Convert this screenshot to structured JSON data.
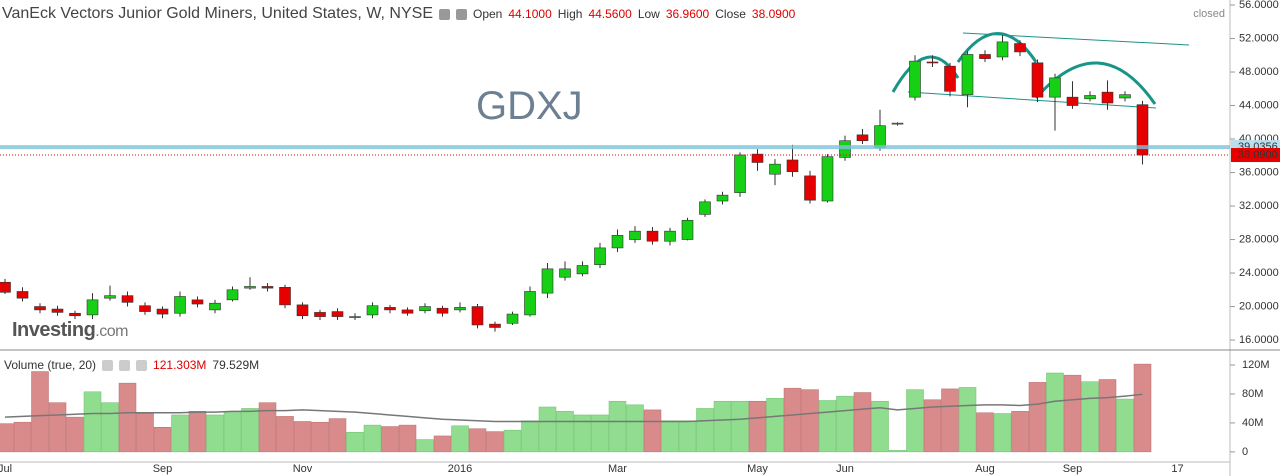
{
  "header": {
    "title": "VanEck Vectors Junior Gold Miners, United States, W, NYSE",
    "fields": [
      {
        "label": "Open",
        "value": "44.1000"
      },
      {
        "label": "High",
        "value": "44.5600"
      },
      {
        "label": "Low",
        "value": "36.9600"
      },
      {
        "label": "Close",
        "value": "38.0900"
      }
    ],
    "status": "closed"
  },
  "watermark": "GDXJ",
  "logo": {
    "main": "Investing",
    "suffix": ".com"
  },
  "chart_data": [
    {
      "type": "candlestick",
      "categories": [
        "Jul",
        null,
        null,
        null,
        null,
        null,
        null,
        null,
        null,
        "Sep",
        null,
        null,
        null,
        null,
        null,
        null,
        null,
        "Nov",
        null,
        null,
        null,
        null,
        null,
        null,
        null,
        null,
        "2016",
        null,
        null,
        null,
        null,
        null,
        null,
        null,
        null,
        "Mar",
        null,
        null,
        null,
        null,
        null,
        null,
        null,
        "May",
        null,
        null,
        null,
        null,
        "Jun",
        null,
        null,
        null,
        null,
        null,
        null,
        null,
        "Aug",
        null,
        null,
        null,
        null,
        "Sep",
        null,
        null,
        null,
        null,
        null,
        "17"
      ],
      "open": [
        22.9,
        21.8,
        20.0,
        19.7,
        19.2,
        19.0,
        21.0,
        21.3,
        20.1,
        19.7,
        19.2,
        20.8,
        19.6,
        20.8,
        22.2,
        22.4,
        22.3,
        20.2,
        19.3,
        19.4,
        18.7,
        19.0,
        19.9,
        19.6,
        19.5,
        19.8,
        19.6,
        20.0,
        17.9,
        18.0,
        19.0,
        21.6,
        23.5,
        23.9,
        25.0,
        27.0,
        28.0,
        29.0,
        27.8,
        28.0,
        31.0,
        32.6,
        33.6,
        38.2,
        35.8,
        37.5,
        35.6,
        32.6,
        37.8,
        40.5,
        39.0,
        41.8,
        45.0,
        49.2,
        48.7,
        45.3,
        50.1,
        49.8,
        51.4,
        49.1,
        45.0,
        45.0,
        44.8,
        45.6,
        44.9,
        44.1,
        null,
        null
      ],
      "high": [
        23.3,
        22.3,
        20.4,
        20.1,
        19.5,
        21.6,
        22.5,
        21.8,
        20.5,
        20.0,
        21.8,
        21.2,
        20.8,
        22.4,
        23.5,
        22.8,
        22.6,
        20.5,
        19.6,
        19.8,
        19.2,
        20.5,
        20.2,
        19.9,
        20.4,
        20.1,
        20.5,
        20.3,
        18.2,
        19.4,
        22.4,
        25.2,
        25.4,
        25.4,
        27.6,
        29.2,
        29.6,
        29.5,
        29.4,
        30.6,
        32.8,
        33.7,
        38.4,
        38.8,
        37.6,
        39.3,
        36.2,
        38.2,
        40.4,
        41.2,
        43.5,
        42.0,
        50.0,
        50.0,
        49.1,
        50.5,
        50.6,
        52.4,
        51.8,
        49.5,
        47.8,
        46.9,
        45.7,
        47.0,
        45.7,
        44.56,
        null,
        null
      ],
      "low": [
        21.5,
        20.6,
        19.2,
        18.9,
        18.5,
        18.5,
        20.7,
        20.0,
        19.0,
        18.6,
        18.8,
        19.9,
        19.2,
        20.6,
        22.0,
        21.8,
        19.8,
        18.5,
        18.4,
        18.4,
        18.4,
        18.6,
        19.2,
        18.9,
        19.2,
        18.8,
        19.3,
        17.4,
        17.0,
        17.8,
        18.8,
        21.0,
        23.1,
        23.6,
        24.6,
        26.5,
        27.6,
        27.4,
        27.3,
        27.9,
        30.7,
        32.2,
        33.1,
        36.2,
        34.5,
        35.5,
        32.3,
        32.4,
        37.4,
        39.4,
        38.6,
        41.6,
        44.6,
        48.6,
        45.1,
        43.8,
        49.2,
        49.4,
        49.9,
        44.4,
        41.0,
        43.6,
        44.5,
        43.5,
        44.5,
        36.96,
        null,
        null
      ],
      "close": [
        21.7,
        21.0,
        19.6,
        19.3,
        18.9,
        20.8,
        21.3,
        20.5,
        19.4,
        19.1,
        21.2,
        20.3,
        20.4,
        22.0,
        22.4,
        22.2,
        20.2,
        18.9,
        18.8,
        18.8,
        18.8,
        20.1,
        19.6,
        19.2,
        20.0,
        19.2,
        19.9,
        17.8,
        17.5,
        19.1,
        21.8,
        24.5,
        24.5,
        24.9,
        27.0,
        28.5,
        29.0,
        27.8,
        29.0,
        30.3,
        32.5,
        33.3,
        38.1,
        37.2,
        37.0,
        36.1,
        32.7,
        37.9,
        39.8,
        39.8,
        41.6,
        41.9,
        49.3,
        49.1,
        45.7,
        50.1,
        49.6,
        51.6,
        50.4,
        45.0,
        47.3,
        44.0,
        45.2,
        44.3,
        45.3,
        38.09,
        null,
        null
      ],
      "up_color": "#16d016",
      "down_color": "#e60000",
      "ylim": [
        15.05,
        56.6
      ],
      "yticks": [
        {
          "value": 16,
          "label": "16.0000"
        },
        {
          "value": 20,
          "label": "20.0000"
        },
        {
          "value": 24,
          "label": "24.0000"
        },
        {
          "value": 28,
          "label": "28.0000"
        },
        {
          "value": 32,
          "label": "32.0000"
        },
        {
          "value": 36,
          "label": "36.0000"
        },
        {
          "value": 40,
          "label": "40.0000"
        },
        {
          "value": 44,
          "label": "44.0000"
        },
        {
          "value": 48,
          "label": "48.0000"
        },
        {
          "value": 52,
          "label": "52.0000"
        },
        {
          "value": 56,
          "label": "56.0000"
        }
      ],
      "grid": false,
      "price_lines": [
        {
          "value": 39.0356,
          "label": "39.0356",
          "color": "#7cc4dc"
        },
        {
          "value": 38.09,
          "label": "38.0900",
          "color": "#e60000"
        }
      ]
    },
    {
      "type": "volume",
      "title": "Volume (true, 20)",
      "last_label": "121.303M",
      "ma_label": "79.529M",
      "values": [
        39,
        41,
        111,
        68,
        48,
        83,
        68,
        95,
        53,
        34,
        51,
        56,
        51,
        56,
        60,
        68,
        49,
        42,
        41,
        46,
        27,
        37,
        35,
        37,
        17,
        22,
        36,
        32,
        28,
        30,
        43,
        62,
        56,
        51,
        51,
        70,
        65,
        58,
        43,
        43,
        60,
        70,
        70,
        70,
        74,
        88,
        86,
        71,
        77,
        82,
        70,
        2,
        86,
        72,
        87,
        89,
        54,
        53,
        56,
        96,
        109,
        106,
        97,
        100,
        73,
        121.303,
        null,
        null
      ],
      "ma": [
        48,
        49,
        50,
        51,
        52,
        53,
        53,
        54,
        54,
        54,
        54,
        55,
        55,
        56,
        56,
        57,
        57,
        58,
        57,
        56,
        55,
        53,
        51,
        49,
        47,
        45,
        44,
        43,
        42,
        42,
        42,
        42,
        42,
        42,
        42,
        42,
        42,
        42,
        42,
        42,
        43,
        44,
        45,
        47,
        49,
        51,
        53,
        55,
        57,
        59,
        61,
        58,
        60,
        62,
        63,
        64,
        65,
        65,
        64,
        66,
        70,
        72,
        74,
        75,
        77,
        79.529,
        null,
        null
      ],
      "up_color": "#90dd90",
      "down_color": "#d98b8b",
      "ma_color": "#777777",
      "ylim": [
        -14,
        138
      ],
      "yticks": [
        0,
        {
          "value": 40,
          "label": "40M"
        },
        {
          "value": 80,
          "label": "80M"
        },
        {
          "value": 120,
          "label": "120M"
        }
      ]
    }
  ]
}
